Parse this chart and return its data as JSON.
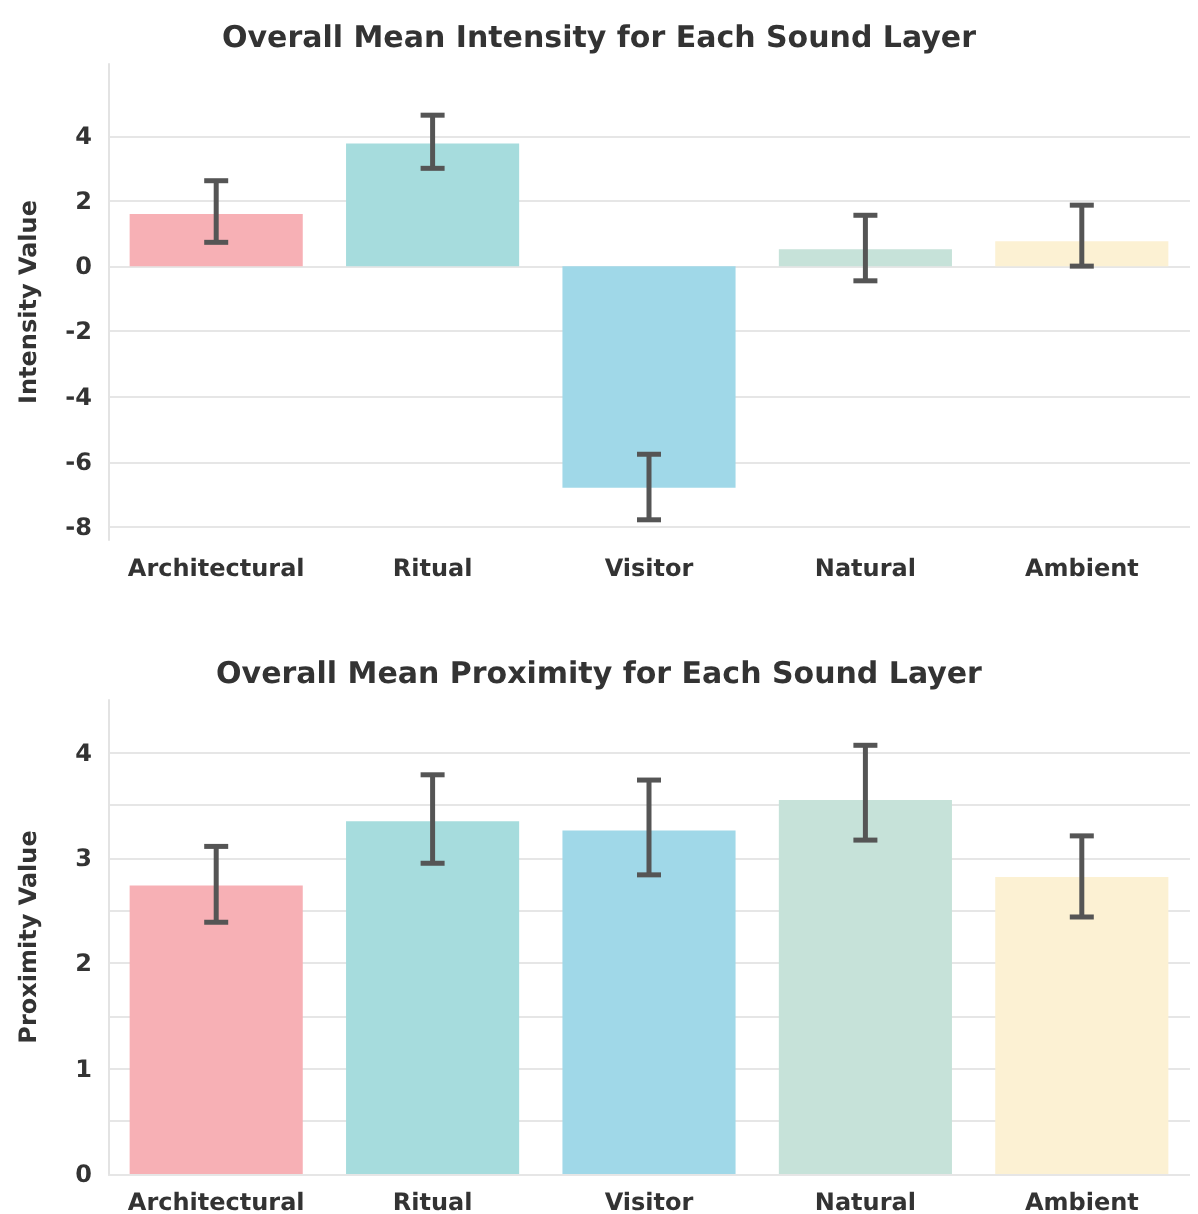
{
  "chart_data": [
    {
      "type": "bar",
      "title": "Overall Mean Intensity for Each Sound Layer",
      "ylabel": "Intensity Value",
      "categories": [
        "Architectural",
        "Ritual",
        "Visitor",
        "Natural",
        "Ambient"
      ],
      "values": [
        1.6,
        3.76,
        -6.8,
        0.52,
        0.76
      ],
      "colors": [
        "#f7b0b5",
        "#a6dcdd",
        "#a0d8e8",
        "#c6e2d9",
        "#fcf1d3"
      ],
      "errors": [
        [
          0.73,
          2.62
        ],
        [
          3.0,
          4.63
        ],
        [
          -7.78,
          -5.77
        ],
        [
          -0.45,
          1.56
        ],
        [
          0,
          1.87
        ]
      ],
      "ylim": [
        -8.4,
        6.2
      ],
      "yticks": [
        -8,
        -6,
        -4,
        -2,
        0,
        2,
        4
      ],
      "grid": "y"
    },
    {
      "type": "bar",
      "title": "Overall Mean Proximity for Each Sound Layer",
      "ylabel": "Proximity Value",
      "categories": [
        "Architectural",
        "Ritual",
        "Visitor",
        "Natural",
        "Ambient"
      ],
      "values": [
        2.74,
        3.35,
        3.26,
        3.55,
        2.82
      ],
      "colors": [
        "#f7b0b5",
        "#a6dcdd",
        "#a0d8e8",
        "#c6e2d9",
        "#fcf1d3"
      ],
      "errors": [
        [
          2.39,
          3.11
        ],
        [
          2.95,
          3.79
        ],
        [
          2.84,
          3.74
        ],
        [
          3.17,
          4.07
        ],
        [
          2.44,
          3.21
        ]
      ],
      "ylim": [
        0,
        4.5
      ],
      "yticks": [
        0,
        {
          "value": 0.5,
          "label": null
        },
        1,
        {
          "value": 1.5,
          "label": null
        },
        2,
        {
          "value": 2.5,
          "label": null
        },
        3,
        {
          "value": 3.5,
          "label": null
        },
        4
      ],
      "grid": "y"
    }
  ]
}
